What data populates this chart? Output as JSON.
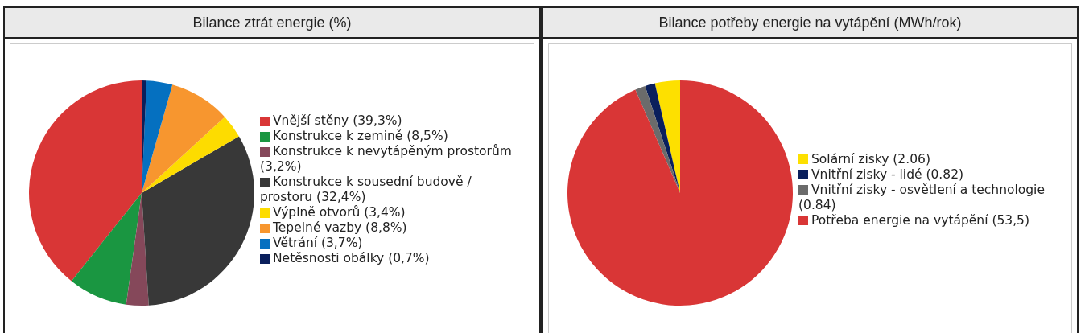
{
  "chart_data": [
    {
      "type": "pie",
      "title": "Bilance ztrát energie (%)",
      "categories": [
        "Vnější stěny (39,3%)",
        "Konstrukce k zemině (8,5%)",
        "Konstrukce k nevytápěným prostorům (3,2%)",
        "Konstrukce k sousední budově / prostoru (32,4%)",
        "Výplně otvorů (3,4%)",
        "Tepelné vazby (8,8%)",
        "Větrání (3,7%)",
        "Netěsnosti obálky (0,7%)"
      ],
      "values": [
        39.3,
        8.5,
        3.2,
        32.4,
        3.4,
        8.8,
        3.7,
        0.7
      ],
      "colors": [
        "#d93636",
        "#1a9641",
        "#85485a",
        "#383838",
        "#fddc00",
        "#f7962f",
        "#0570c0",
        "#0a1f5c"
      ],
      "legend": "right"
    },
    {
      "type": "pie",
      "title": "Bilance potřeby energie na vytápění (MWh/rok)",
      "categories": [
        "Solární zisky (2.06)",
        "Vnitřní zisky - lidé (0.82)",
        "Vnitřní zisky - osvětlení a technologie (0.84)",
        "Potřeba energie na vytápění (53,5)"
      ],
      "values": [
        2.06,
        0.82,
        0.84,
        53.5
      ],
      "colors": [
        "#fde000",
        "#0a1f5c",
        "#6b6b6b",
        "#d93636"
      ],
      "legend": "right"
    }
  ]
}
